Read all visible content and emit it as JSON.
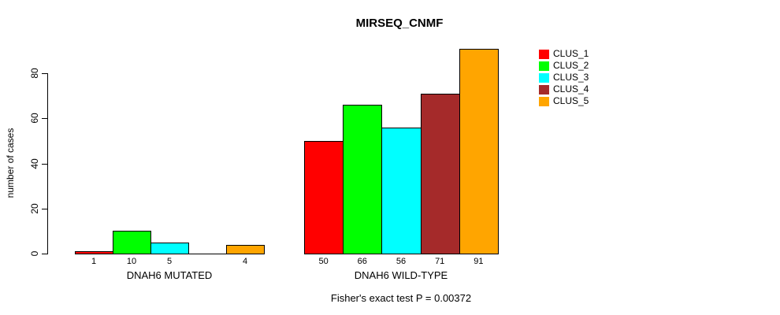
{
  "chart_data": {
    "type": "bar",
    "title": "MIRSEQ_CNMF",
    "ylabel": "number of cases",
    "xlabel": "",
    "ylim": [
      0,
      91.2
    ],
    "yticks": [
      0,
      20,
      40,
      60,
      80
    ],
    "grid": false,
    "legend_position": "right",
    "categories": [
      "DNAH6 MUTATED",
      "DNAH6 WILD-TYPE"
    ],
    "series": [
      {
        "name": "CLUS_1",
        "color": "#FF0000",
        "values": [
          1,
          50
        ]
      },
      {
        "name": "CLUS_2",
        "color": "#00FF00",
        "values": [
          10,
          66
        ]
      },
      {
        "name": "CLUS_3",
        "color": "#00FFFF",
        "values": [
          5,
          56
        ]
      },
      {
        "name": "CLUS_4",
        "color": "#A52A2A",
        "values": [
          0,
          71
        ]
      },
      {
        "name": "CLUS_5",
        "color": "#FFA500",
        "values": [
          4,
          91
        ]
      }
    ],
    "value_labels": [
      [
        "1",
        "10",
        "5",
        "",
        "4"
      ],
      [
        "50",
        "66",
        "56",
        "71",
        "91"
      ]
    ],
    "annotation": "Fisher's exact test P = 0.00372"
  }
}
